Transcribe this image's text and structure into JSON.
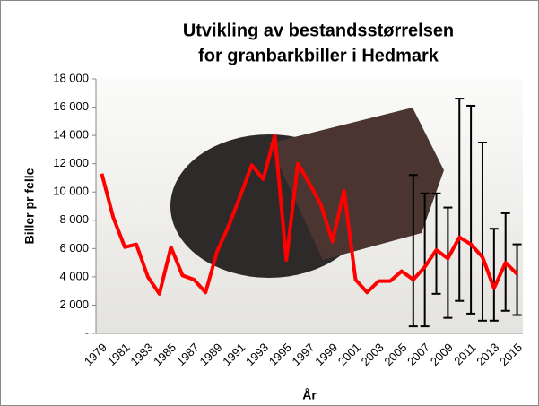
{
  "chart_data": {
    "type": "line",
    "title": [
      "Utvikling av bestandsstørrelsen",
      "for granbarkbiller i Hedmark"
    ],
    "xlabel": "År",
    "ylabel": "Biller pr felle",
    "categories": [
      "1979",
      null,
      "1981",
      null,
      "1983",
      null,
      "1985",
      null,
      "1987",
      null,
      "1989",
      null,
      "1991",
      null,
      "1993",
      null,
      "1995",
      null,
      "1997",
      null,
      "1999",
      null,
      "2001",
      null,
      "2003",
      null,
      "2005",
      null,
      "2007",
      null,
      "2009",
      null,
      "2011",
      null,
      "2013",
      null,
      "2015"
    ],
    "series": [
      {
        "color": "#ff0000",
        "values": [
          11300,
          8200,
          6100,
          6300,
          4000,
          2800,
          6100,
          4100,
          3800,
          2900,
          5800,
          7600,
          9700,
          11900,
          10900,
          14000,
          5200,
          12000,
          10600,
          9100,
          6500,
          10100,
          3800,
          2900,
          3700,
          3700,
          4400,
          3800,
          4700,
          5900,
          5300,
          6800,
          6300,
          5400,
          3200,
          5000,
          4200
        ],
        "upper": [
          null,
          null,
          null,
          null,
          null,
          null,
          null,
          null,
          null,
          null,
          null,
          null,
          null,
          null,
          null,
          null,
          null,
          null,
          null,
          null,
          null,
          null,
          null,
          null,
          null,
          null,
          null,
          11200,
          9900,
          9900,
          8900,
          16600,
          16100,
          13500,
          7400,
          8500,
          6300
        ],
        "lower": [
          null,
          null,
          null,
          null,
          null,
          null,
          null,
          null,
          null,
          null,
          null,
          null,
          null,
          null,
          null,
          null,
          null,
          null,
          null,
          null,
          null,
          null,
          null,
          null,
          null,
          null,
          null,
          500,
          500,
          2800,
          1100,
          2300,
          1400,
          900,
          900,
          1600,
          1300
        ]
      }
    ],
    "ylim": [
      0,
      18000
    ],
    "yticks": [
      {
        "value": 0,
        "label": "-"
      },
      {
        "value": 2000,
        "label": "2 000"
      },
      {
        "value": 4000,
        "label": "4 000"
      },
      {
        "value": 6000,
        "label": "6 000"
      },
      {
        "value": 8000,
        "label": "8 000"
      },
      {
        "value": 10000,
        "label": "10 000"
      },
      {
        "value": 12000,
        "label": "12 000"
      },
      {
        "value": 14000,
        "label": "14 000"
      },
      {
        "value": 16000,
        "label": "16 000"
      },
      {
        "value": 18000,
        "label": "18 000"
      }
    ]
  }
}
